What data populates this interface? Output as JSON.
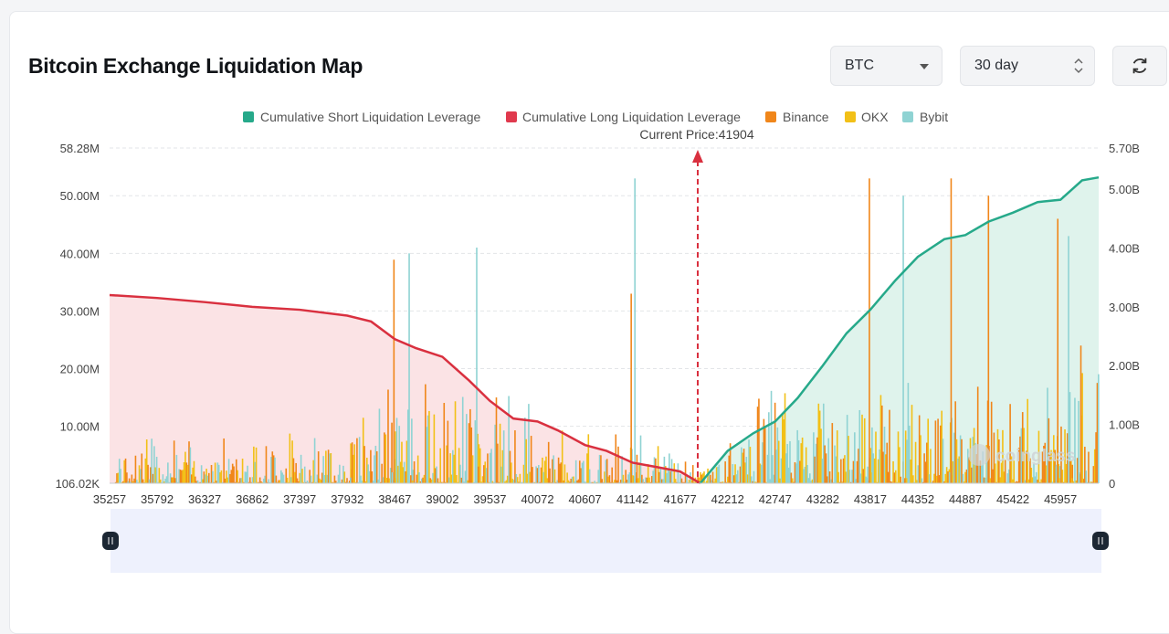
{
  "header": {
    "title": "Bitcoin Exchange Liquidation Map",
    "coin_select": "BTC",
    "period_select": "30 day",
    "icons": {
      "coin_caret": "chevron-down-icon",
      "period_stepper": "sort-updown-icon",
      "refresh": "refresh-icon"
    }
  },
  "chart_data": {
    "type": "bar",
    "title": "",
    "annotation": "Current Price:41904",
    "current_price": 41904,
    "watermark": "coinglass",
    "legend": [
      {
        "name": "Cumulative Short Liquidation Leverage",
        "color": "#26a98a"
      },
      {
        "name": "Cumulative Long Liquidation Leverage",
        "color": "#e0394d"
      },
      {
        "name": "Binance",
        "color": "#f0861a"
      },
      {
        "name": "OKX",
        "color": "#f2c017"
      },
      {
        "name": "Bybit",
        "color": "#8fd3d3"
      }
    ],
    "legend_position": "top-center",
    "grid": true,
    "x_ticks": [
      35257,
      35792,
      36327,
      36862,
      37397,
      37932,
      38467,
      39002,
      39537,
      40072,
      40607,
      41142,
      41677,
      42212,
      42747,
      43282,
      43817,
      44352,
      44887,
      45422,
      45957
    ],
    "xlim": [
      35257,
      46387
    ],
    "y_left_ticks": [
      "106.02K",
      "10.00M",
      "20.00M",
      "30.00M",
      "40.00M",
      "50.00M",
      "58.28M"
    ],
    "y_left_values": [
      0.106,
      10,
      20,
      30,
      40,
      50,
      58.28
    ],
    "y_left_unit": "M",
    "y_left_range": [
      0.106,
      58.28
    ],
    "y_right_ticks": [
      "0",
      "1.00B",
      "2.00B",
      "3.00B",
      "4.00B",
      "5.00B",
      "5.70B"
    ],
    "y_right_values": [
      0,
      1,
      2,
      3,
      4,
      5,
      5.7
    ],
    "y_right_unit": "B",
    "y_right_range": [
      0,
      5.7
    ],
    "long_cumulative": {
      "axis": "right",
      "x": [
        35257,
        35792,
        36327,
        36862,
        37397,
        37932,
        38200,
        38467,
        38700,
        39002,
        39300,
        39537,
        39800,
        40072,
        40300,
        40607,
        40850,
        41142,
        41400,
        41677,
        41904
      ],
      "y": [
        3.2,
        3.15,
        3.08,
        3.0,
        2.95,
        2.85,
        2.75,
        2.45,
        2.3,
        2.15,
        1.75,
        1.4,
        1.1,
        1.05,
        0.9,
        0.65,
        0.55,
        0.35,
        0.28,
        0.2,
        0.0
      ]
    },
    "short_cumulative": {
      "axis": "right",
      "x": [
        41904,
        42100,
        42212,
        42500,
        42747,
        43000,
        43282,
        43550,
        43817,
        44100,
        44352,
        44650,
        44887,
        45150,
        45422,
        45700,
        45957,
        46200,
        46387
      ],
      "y": [
        0.0,
        0.35,
        0.55,
        0.85,
        1.05,
        1.45,
        2.0,
        2.55,
        2.95,
        3.45,
        3.85,
        4.15,
        4.22,
        4.45,
        4.6,
        4.78,
        4.82,
        5.15,
        5.2
      ]
    },
    "bars": [
      {
        "x": 37960,
        "binance": 7.2,
        "okx": 0.8,
        "bybit": 1.1
      },
      {
        "x": 38430,
        "binance": 38.9,
        "okx": 1.0,
        "bybit": 2.0
      },
      {
        "x": 38620,
        "binance": 1.5,
        "okx": 0.6,
        "bybit": 40.0
      },
      {
        "x": 39380,
        "binance": 3.0,
        "okx": 1.0,
        "bybit": 41.0
      },
      {
        "x": 41160,
        "binance": 2.0,
        "okx": 1.0,
        "bybit": 53.0
      },
      {
        "x": 41100,
        "binance": 33.0,
        "okx": 1.5,
        "bybit": 2.0
      },
      {
        "x": 43780,
        "binance": 53.0,
        "okx": 2.0,
        "bybit": 3.0
      },
      {
        "x": 44180,
        "binance": 1.0,
        "okx": 1.0,
        "bybit": 50.0
      },
      {
        "x": 44700,
        "binance": 53.0,
        "okx": 1.5,
        "bybit": 2.0
      },
      {
        "x": 45120,
        "binance": 50.0,
        "okx": 1.0,
        "bybit": 4.0
      },
      {
        "x": 45900,
        "binance": 46.0,
        "okx": 1.0,
        "bybit": 3.0
      },
      {
        "x": 46040,
        "binance": 4.0,
        "okx": 1.0,
        "bybit": 43.0
      },
      {
        "x": 46160,
        "binance": 24.0,
        "okx": 1.0,
        "bybit": 2.0
      }
    ],
    "bars_note_fill": "remaining bars are dense small values generated for visual texture"
  }
}
